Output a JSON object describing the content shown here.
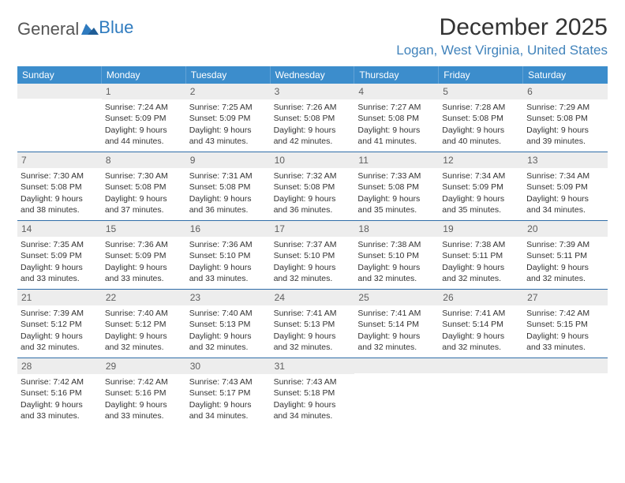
{
  "logo": {
    "text_gray": "General",
    "text_blue": "Blue"
  },
  "title": "December 2025",
  "location": "Logan, West Virginia, United States",
  "colors": {
    "header_bg": "#3c8dcc",
    "header_text": "#ffffff",
    "daynum_bg": "#ededed",
    "daynum_text": "#5f5f5f",
    "rule": "#2f6da8",
    "location_text": "#4183bb",
    "body_text": "#333333"
  },
  "weekdays": [
    "Sunday",
    "Monday",
    "Tuesday",
    "Wednesday",
    "Thursday",
    "Friday",
    "Saturday"
  ],
  "weeks": [
    [
      {
        "day": "",
        "sunrise": "",
        "sunset": "",
        "daylight": ""
      },
      {
        "day": "1",
        "sunrise": "Sunrise: 7:24 AM",
        "sunset": "Sunset: 5:09 PM",
        "daylight": "Daylight: 9 hours and 44 minutes."
      },
      {
        "day": "2",
        "sunrise": "Sunrise: 7:25 AM",
        "sunset": "Sunset: 5:09 PM",
        "daylight": "Daylight: 9 hours and 43 minutes."
      },
      {
        "day": "3",
        "sunrise": "Sunrise: 7:26 AM",
        "sunset": "Sunset: 5:08 PM",
        "daylight": "Daylight: 9 hours and 42 minutes."
      },
      {
        "day": "4",
        "sunrise": "Sunrise: 7:27 AM",
        "sunset": "Sunset: 5:08 PM",
        "daylight": "Daylight: 9 hours and 41 minutes."
      },
      {
        "day": "5",
        "sunrise": "Sunrise: 7:28 AM",
        "sunset": "Sunset: 5:08 PM",
        "daylight": "Daylight: 9 hours and 40 minutes."
      },
      {
        "day": "6",
        "sunrise": "Sunrise: 7:29 AM",
        "sunset": "Sunset: 5:08 PM",
        "daylight": "Daylight: 9 hours and 39 minutes."
      }
    ],
    [
      {
        "day": "7",
        "sunrise": "Sunrise: 7:30 AM",
        "sunset": "Sunset: 5:08 PM",
        "daylight": "Daylight: 9 hours and 38 minutes."
      },
      {
        "day": "8",
        "sunrise": "Sunrise: 7:30 AM",
        "sunset": "Sunset: 5:08 PM",
        "daylight": "Daylight: 9 hours and 37 minutes."
      },
      {
        "day": "9",
        "sunrise": "Sunrise: 7:31 AM",
        "sunset": "Sunset: 5:08 PM",
        "daylight": "Daylight: 9 hours and 36 minutes."
      },
      {
        "day": "10",
        "sunrise": "Sunrise: 7:32 AM",
        "sunset": "Sunset: 5:08 PM",
        "daylight": "Daylight: 9 hours and 36 minutes."
      },
      {
        "day": "11",
        "sunrise": "Sunrise: 7:33 AM",
        "sunset": "Sunset: 5:08 PM",
        "daylight": "Daylight: 9 hours and 35 minutes."
      },
      {
        "day": "12",
        "sunrise": "Sunrise: 7:34 AM",
        "sunset": "Sunset: 5:09 PM",
        "daylight": "Daylight: 9 hours and 35 minutes."
      },
      {
        "day": "13",
        "sunrise": "Sunrise: 7:34 AM",
        "sunset": "Sunset: 5:09 PM",
        "daylight": "Daylight: 9 hours and 34 minutes."
      }
    ],
    [
      {
        "day": "14",
        "sunrise": "Sunrise: 7:35 AM",
        "sunset": "Sunset: 5:09 PM",
        "daylight": "Daylight: 9 hours and 33 minutes."
      },
      {
        "day": "15",
        "sunrise": "Sunrise: 7:36 AM",
        "sunset": "Sunset: 5:09 PM",
        "daylight": "Daylight: 9 hours and 33 minutes."
      },
      {
        "day": "16",
        "sunrise": "Sunrise: 7:36 AM",
        "sunset": "Sunset: 5:10 PM",
        "daylight": "Daylight: 9 hours and 33 minutes."
      },
      {
        "day": "17",
        "sunrise": "Sunrise: 7:37 AM",
        "sunset": "Sunset: 5:10 PM",
        "daylight": "Daylight: 9 hours and 32 minutes."
      },
      {
        "day": "18",
        "sunrise": "Sunrise: 7:38 AM",
        "sunset": "Sunset: 5:10 PM",
        "daylight": "Daylight: 9 hours and 32 minutes."
      },
      {
        "day": "19",
        "sunrise": "Sunrise: 7:38 AM",
        "sunset": "Sunset: 5:11 PM",
        "daylight": "Daylight: 9 hours and 32 minutes."
      },
      {
        "day": "20",
        "sunrise": "Sunrise: 7:39 AM",
        "sunset": "Sunset: 5:11 PM",
        "daylight": "Daylight: 9 hours and 32 minutes."
      }
    ],
    [
      {
        "day": "21",
        "sunrise": "Sunrise: 7:39 AM",
        "sunset": "Sunset: 5:12 PM",
        "daylight": "Daylight: 9 hours and 32 minutes."
      },
      {
        "day": "22",
        "sunrise": "Sunrise: 7:40 AM",
        "sunset": "Sunset: 5:12 PM",
        "daylight": "Daylight: 9 hours and 32 minutes."
      },
      {
        "day": "23",
        "sunrise": "Sunrise: 7:40 AM",
        "sunset": "Sunset: 5:13 PM",
        "daylight": "Daylight: 9 hours and 32 minutes."
      },
      {
        "day": "24",
        "sunrise": "Sunrise: 7:41 AM",
        "sunset": "Sunset: 5:13 PM",
        "daylight": "Daylight: 9 hours and 32 minutes."
      },
      {
        "day": "25",
        "sunrise": "Sunrise: 7:41 AM",
        "sunset": "Sunset: 5:14 PM",
        "daylight": "Daylight: 9 hours and 32 minutes."
      },
      {
        "day": "26",
        "sunrise": "Sunrise: 7:41 AM",
        "sunset": "Sunset: 5:14 PM",
        "daylight": "Daylight: 9 hours and 32 minutes."
      },
      {
        "day": "27",
        "sunrise": "Sunrise: 7:42 AM",
        "sunset": "Sunset: 5:15 PM",
        "daylight": "Daylight: 9 hours and 33 minutes."
      }
    ],
    [
      {
        "day": "28",
        "sunrise": "Sunrise: 7:42 AM",
        "sunset": "Sunset: 5:16 PM",
        "daylight": "Daylight: 9 hours and 33 minutes."
      },
      {
        "day": "29",
        "sunrise": "Sunrise: 7:42 AM",
        "sunset": "Sunset: 5:16 PM",
        "daylight": "Daylight: 9 hours and 33 minutes."
      },
      {
        "day": "30",
        "sunrise": "Sunrise: 7:43 AM",
        "sunset": "Sunset: 5:17 PM",
        "daylight": "Daylight: 9 hours and 34 minutes."
      },
      {
        "day": "31",
        "sunrise": "Sunrise: 7:43 AM",
        "sunset": "Sunset: 5:18 PM",
        "daylight": "Daylight: 9 hours and 34 minutes."
      },
      {
        "day": "",
        "sunrise": "",
        "sunset": "",
        "daylight": ""
      },
      {
        "day": "",
        "sunrise": "",
        "sunset": "",
        "daylight": ""
      },
      {
        "day": "",
        "sunrise": "",
        "sunset": "",
        "daylight": ""
      }
    ]
  ]
}
